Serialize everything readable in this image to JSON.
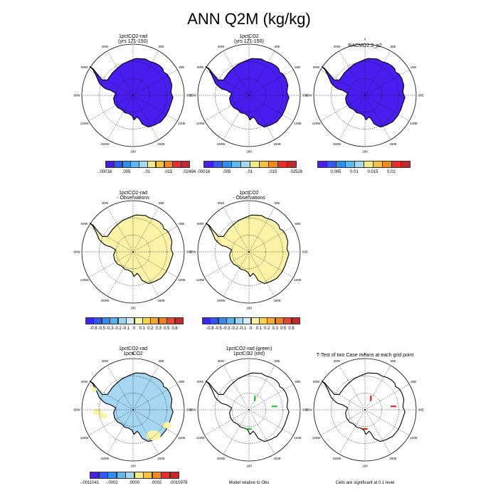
{
  "title": "ANN Q2M (kg/kg)",
  "colors": {
    "cb_abs": [
      "#4a1cf0",
      "#3258f5",
      "#2f8ef2",
      "#5cb8ee",
      "#a5d7f2",
      "#f5e98c",
      "#f6c23a",
      "#f58a1c",
      "#ec2b2b",
      "#c8262a"
    ],
    "cb_diff": [
      "#3a28f0",
      "#3256f4",
      "#3786f2",
      "#57b2ee",
      "#98d3f0",
      "#d6ecf3",
      "#fbf3a6",
      "#f7d446",
      "#f5aa2c",
      "#f2801e",
      "#e9452a",
      "#c52a2a"
    ],
    "ice_blue": "#4a1cf0",
    "obs_yellow": "#fbf3a6",
    "diff_blue": "#a5d7f2",
    "sig_green": "#1ec31e",
    "sig_red": "#e21a1a"
  },
  "longitude_labels": [
    "0",
    "30E",
    "60E",
    "90E",
    "120E",
    "150E",
    "180",
    "150W",
    "120W",
    "90W",
    "60W",
    "30W"
  ],
  "panels": [
    {
      "id": "p1",
      "title": [
        "1pctCO2-rad",
        "(yrs 121-150)"
      ],
      "fill": "abs",
      "colorbar": {
        "colors": "cb_abs",
        "labels": [
          ".00016",
          ".005",
          ".01",
          ".015",
          ".02494"
        ]
      }
    },
    {
      "id": "p2",
      "title": [
        "1pctCO2",
        "(yrs 121-150)"
      ],
      "fill": "abs",
      "colorbar": {
        "colors": "cb_abs",
        "labels": [
          ".00016",
          ".005",
          ".01",
          ".015",
          ".02526"
        ]
      }
    },
    {
      "id": "p3",
      "title": [
        "RACMO2.3_p2"
      ],
      "fill": "abs",
      "colorbar": {
        "colors": "cb_abs",
        "labels": [
          "0.005",
          "0.01",
          "0.015",
          "0.02"
        ]
      }
    },
    {
      "id": "p4",
      "title": [
        "1pctCO2-rad",
        "- Observations"
      ],
      "fill": "obs",
      "colorbar": {
        "colors": "cb_diff",
        "labels": [
          "-0.8",
          "-0.5",
          "-0.3",
          "-0.2",
          "-0.1",
          "0",
          "0.1",
          "0.2",
          "0.3",
          "0.5",
          "0.8"
        ]
      }
    },
    {
      "id": "p5",
      "title": [
        "1pctCO2",
        "- Observations"
      ],
      "fill": "obs",
      "colorbar": {
        "colors": "cb_diff",
        "labels": [
          "-0.8",
          "-0.5",
          "-0.3",
          "-0.2",
          "-0.1",
          "0",
          "0.1",
          "0.2",
          "0.3",
          "0.5",
          "0.8"
        ]
      }
    },
    {
      "id": "p6",
      "title": [
        "1pctCO2-rad",
        "1pctCO2"
      ],
      "fill": "diff",
      "colorbar": {
        "colors": "cb_abs",
        "labels": [
          "-.0011041",
          "-.0002",
          ".0000",
          ".0002",
          ".0010978"
        ]
      }
    },
    {
      "id": "p7",
      "title": [
        "1pctCO2-rad (green)",
        "1pctCO2 (red)"
      ],
      "fill": "sig",
      "note": "Model relative to Obs"
    },
    {
      "id": "p8",
      "title": [
        "T-Test of two Case means at each grid point"
      ],
      "fill": "ttest",
      "note": "Cells are significant at 0.1 level"
    }
  ]
}
